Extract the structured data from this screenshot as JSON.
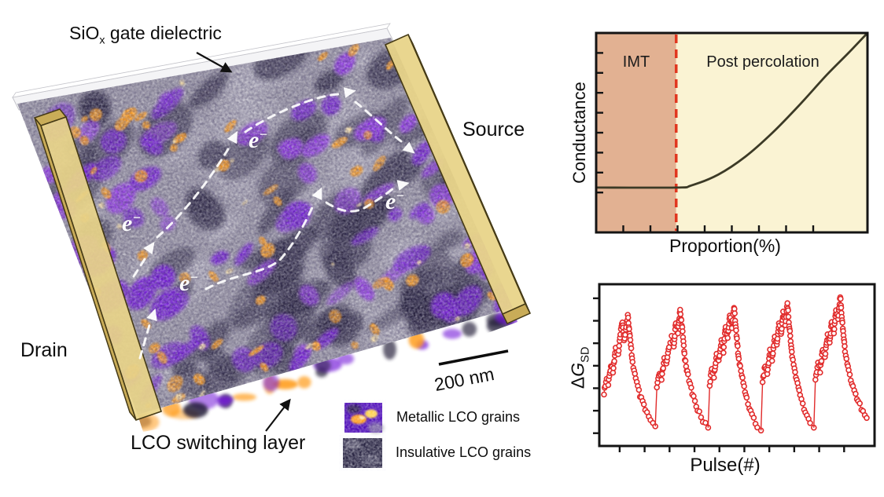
{
  "device": {
    "gate_label": {
      "prefix": "SiO",
      "sub": "x",
      "suffix": "gate dielectric"
    },
    "source_label": "Source",
    "drain_label": "Drain",
    "switching_label": "LCO switching layer",
    "scale_bar_label": "200 nm",
    "electron_base": "e",
    "electron_sup": "−",
    "legend": [
      {
        "id": "metallic",
        "label": "Metallic LCO grains"
      },
      {
        "id": "insulative",
        "label": "Insulative LCO grains"
      }
    ],
    "colors": {
      "electrode_face": "#e8d489",
      "electrode_side": "#c9ac58",
      "electrode_edge": "#453a16",
      "dielectric_face": "#f4f4f6",
      "dielectric_edge": "#c4c4ca",
      "film_base": "#9a96a5",
      "film_fog": "#cdcbd5",
      "film_dark": "#221e38",
      "film_purple": "#7215d8",
      "film_purple2": "#9031e8",
      "film_orange": "#ff9d1f",
      "film_hot": "#ffe5a6",
      "path_color": "#ffffff"
    }
  },
  "chart_data": [
    {
      "id": "percolation-schematic",
      "type": "line",
      "title": "",
      "xlabel": "Proportion(%)",
      "ylabel": "Conductance",
      "axis_numbers": false,
      "grid": false,
      "legend_position": "none",
      "xlim": [
        0,
        1
      ],
      "ylim": [
        0,
        1
      ],
      "regions": [
        {
          "label": "IMT",
          "x0": 0,
          "x1": 0.295,
          "color": "#e2b192"
        },
        {
          "label": "Post percolation",
          "x0": 0.295,
          "x1": 1,
          "color": "#faf3d3"
        }
      ],
      "threshold_x": 0.295,
      "threshold_color": "#e1361f",
      "line_color": "#3c3a26",
      "points": [
        [
          0,
          0.225
        ],
        [
          0.295,
          0.225
        ],
        [
          0.35,
          0.235
        ],
        [
          0.45,
          0.29
        ],
        [
          0.55,
          0.38
        ],
        [
          0.65,
          0.5
        ],
        [
          0.75,
          0.64
        ],
        [
          0.85,
          0.79
        ],
        [
          0.93,
          0.9
        ],
        [
          1,
          1
        ]
      ],
      "x_ticks": 8,
      "y_ticks": 8
    },
    {
      "id": "pulse-response",
      "type": "scatter",
      "title": "",
      "xlabel": "Pulse(#)",
      "ylabel": {
        "delta": "Δ",
        "symbol": "G",
        "sub": "SD"
      },
      "axis_numbers": false,
      "grid": false,
      "marker": "open-circle",
      "marker_color": "#e12b2b",
      "x_ticks": 10,
      "y_ticks": 7,
      "cycles": [
        [
          [
            0,
            0.3
          ],
          [
            0.05,
            0.4
          ],
          [
            0.08,
            0.36
          ],
          [
            0.13,
            0.5
          ],
          [
            0.17,
            0.46
          ],
          [
            0.22,
            0.62
          ],
          [
            0.27,
            0.58
          ],
          [
            0.31,
            0.72
          ],
          [
            0.35,
            0.82
          ],
          [
            0.38,
            0.68
          ],
          [
            0.42,
            0.78
          ],
          [
            0.45,
            0.86
          ],
          [
            0.49,
            0.7
          ],
          [
            0.54,
            0.52
          ],
          [
            0.6,
            0.4
          ],
          [
            0.68,
            0.28
          ],
          [
            0.78,
            0.18
          ],
          [
            0.88,
            0.1
          ],
          [
            0.97,
            0.06
          ]
        ],
        [
          [
            0,
            0.34
          ],
          [
            0.05,
            0.44
          ],
          [
            0.09,
            0.4
          ],
          [
            0.14,
            0.54
          ],
          [
            0.18,
            0.5
          ],
          [
            0.23,
            0.64
          ],
          [
            0.28,
            0.7
          ],
          [
            0.32,
            0.64
          ],
          [
            0.36,
            0.8
          ],
          [
            0.4,
            0.74
          ],
          [
            0.44,
            0.9
          ],
          [
            0.48,
            0.76
          ],
          [
            0.53,
            0.55
          ],
          [
            0.59,
            0.42
          ],
          [
            0.67,
            0.3
          ],
          [
            0.77,
            0.18
          ],
          [
            0.87,
            0.1
          ],
          [
            0.97,
            0.05
          ]
        ],
        [
          [
            0,
            0.36
          ],
          [
            0.04,
            0.48
          ],
          [
            0.08,
            0.42
          ],
          [
            0.13,
            0.58
          ],
          [
            0.17,
            0.52
          ],
          [
            0.22,
            0.68
          ],
          [
            0.26,
            0.6
          ],
          [
            0.3,
            0.78
          ],
          [
            0.34,
            0.7
          ],
          [
            0.38,
            0.86
          ],
          [
            0.42,
            0.78
          ],
          [
            0.46,
            0.92
          ],
          [
            0.5,
            0.74
          ],
          [
            0.55,
            0.54
          ],
          [
            0.62,
            0.4
          ],
          [
            0.7,
            0.26
          ],
          [
            0.8,
            0.14
          ],
          [
            0.9,
            0.06
          ],
          [
            0.97,
            0.03
          ]
        ],
        [
          [
            0,
            0.38
          ],
          [
            0.05,
            0.5
          ],
          [
            0.09,
            0.44
          ],
          [
            0.14,
            0.6
          ],
          [
            0.18,
            0.54
          ],
          [
            0.23,
            0.7
          ],
          [
            0.27,
            0.64
          ],
          [
            0.31,
            0.8
          ],
          [
            0.35,
            0.72
          ],
          [
            0.39,
            0.88
          ],
          [
            0.43,
            0.8
          ],
          [
            0.47,
            0.94
          ],
          [
            0.51,
            0.76
          ],
          [
            0.56,
            0.56
          ],
          [
            0.63,
            0.42
          ],
          [
            0.71,
            0.28
          ],
          [
            0.81,
            0.16
          ],
          [
            0.9,
            0.08
          ],
          [
            0.97,
            0.05
          ]
        ],
        [
          [
            0,
            0.4
          ],
          [
            0.05,
            0.52
          ],
          [
            0.09,
            0.46
          ],
          [
            0.14,
            0.62
          ],
          [
            0.18,
            0.56
          ],
          [
            0.23,
            0.72
          ],
          [
            0.27,
            0.66
          ],
          [
            0.31,
            0.82
          ],
          [
            0.35,
            0.74
          ],
          [
            0.39,
            0.9
          ],
          [
            0.43,
            0.84
          ],
          [
            0.47,
            1.0
          ],
          [
            0.51,
            0.8
          ],
          [
            0.56,
            0.6
          ],
          [
            0.63,
            0.46
          ],
          [
            0.71,
            0.34
          ],
          [
            0.81,
            0.24
          ],
          [
            0.9,
            0.16
          ],
          [
            0.97,
            0.12
          ]
        ]
      ]
    }
  ]
}
